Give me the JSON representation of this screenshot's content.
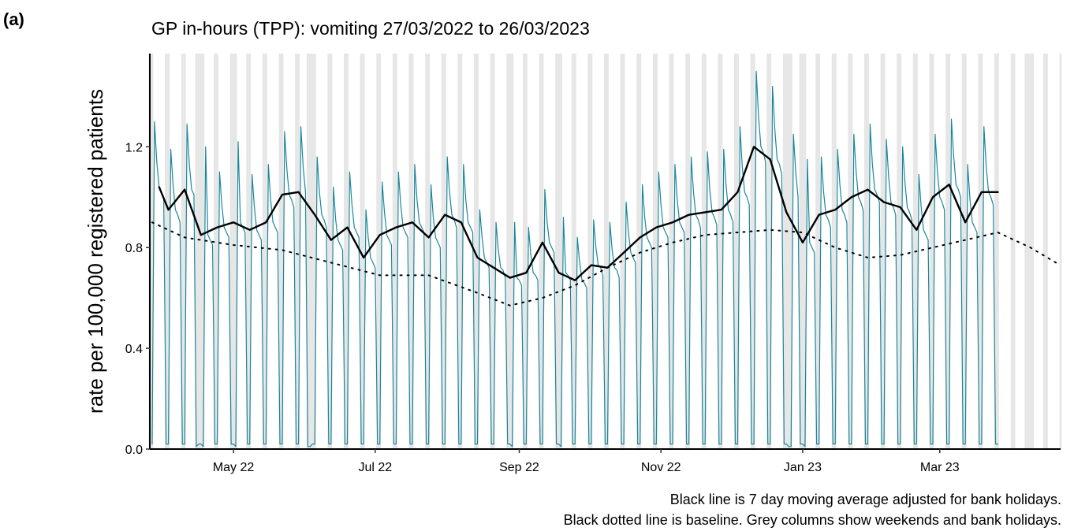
{
  "panel_label": "(a)",
  "chart_data": {
    "type": "line",
    "title": "GP in-hours (TPP): vomiting 27/03/2022 to 26/03/2023",
    "y_label": "rate per 100,000 registered patients",
    "notes": [
      "Black line is 7 day moving average adjusted for bank holidays.",
      "Black dotted line is baseline. Grey columns show weekends and bank holidays."
    ],
    "xlim": [
      "2022-03-26",
      "2023-04-22"
    ],
    "xticks": [
      {
        "value": "2022-05-01",
        "label": "May 22"
      },
      {
        "value": "2022-07-01",
        "label": "Jul 22"
      },
      {
        "value": "2022-09-01",
        "label": "Sep 22"
      },
      {
        "value": "2022-11-01",
        "label": "Nov 22"
      },
      {
        "value": "2023-01-01",
        "label": "Jan 23"
      },
      {
        "value": "2023-03-01",
        "label": "Mar 23"
      }
    ],
    "ylim": [
      0,
      1.57
    ],
    "yticks": [
      {
        "value": 0,
        "label": "0.0"
      },
      0.4,
      0.8,
      1.2
    ],
    "shade_color": "#e6e6e6",
    "bank_holidays": [
      "2022-04-15",
      "2022-04-18",
      "2022-05-02",
      "2022-06-02",
      "2022-06-03",
      "2022-08-29",
      "2022-09-19",
      "2022-12-26",
      "2022-12-27",
      "2023-01-02",
      "2023-04-07",
      "2023-04-10"
    ],
    "series": [
      {
        "role": "daily",
        "color": "#1b869b",
        "x": [
          "2022-03-27",
          "2022-03-28",
          "2022-03-29",
          "2022-03-30",
          "2022-03-31",
          "2022-04-01",
          "2022-04-02",
          "2022-04-03",
          "2022-04-04",
          "2022-04-05",
          "2022-04-06",
          "2022-04-07",
          "2022-04-08",
          "2022-04-09",
          "2022-04-10",
          "2022-04-11",
          "2022-04-12",
          "2022-04-13",
          "2022-04-14",
          "2022-04-15",
          "2022-04-16",
          "2022-04-17",
          "2022-04-18",
          "2022-04-19",
          "2022-04-20",
          "2022-04-21",
          "2022-04-22",
          "2022-04-23",
          "2022-04-24",
          "2022-04-25",
          "2022-04-26",
          "2022-04-27",
          "2022-04-28",
          "2022-04-29",
          "2022-04-30",
          "2022-05-01",
          "2022-05-02",
          "2022-05-03",
          "2022-05-04",
          "2022-05-05",
          "2022-05-06",
          "2022-05-07",
          "2022-05-08",
          "2022-05-09",
          "2022-05-10",
          "2022-05-11",
          "2022-05-12",
          "2022-05-13",
          "2022-05-14",
          "2022-05-15",
          "2022-05-16",
          "2022-05-17",
          "2022-05-18",
          "2022-05-19",
          "2022-05-20",
          "2022-05-21",
          "2022-05-22",
          "2022-05-23",
          "2022-05-24",
          "2022-05-25",
          "2022-05-26",
          "2022-05-27",
          "2022-05-28",
          "2022-05-29",
          "2022-05-30",
          "2022-05-31",
          "2022-06-01",
          "2022-06-02",
          "2022-06-03",
          "2022-06-04",
          "2022-06-05",
          "2022-06-06",
          "2022-06-07",
          "2022-06-08",
          "2022-06-09",
          "2022-06-10",
          "2022-06-11",
          "2022-06-12",
          "2022-06-13",
          "2022-06-14",
          "2022-06-15",
          "2022-06-16",
          "2022-06-17",
          "2022-06-18",
          "2022-06-19",
          "2022-06-20",
          "2022-06-21",
          "2022-06-22",
          "2022-06-23",
          "2022-06-24",
          "2022-06-25",
          "2022-06-26",
          "2022-06-27",
          "2022-06-28",
          "2022-06-29",
          "2022-06-30",
          "2022-07-01",
          "2022-07-02",
          "2022-07-03",
          "2022-07-04",
          "2022-07-05",
          "2022-07-06",
          "2022-07-07",
          "2022-07-08",
          "2022-07-09",
          "2022-07-10",
          "2022-07-11",
          "2022-07-12",
          "2022-07-13",
          "2022-07-14",
          "2022-07-15",
          "2022-07-16",
          "2022-07-17",
          "2022-07-18",
          "2022-07-19",
          "2022-07-20",
          "2022-07-21",
          "2022-07-22",
          "2022-07-23",
          "2022-07-24",
          "2022-07-25",
          "2022-07-26",
          "2022-07-27",
          "2022-07-28",
          "2022-07-29",
          "2022-07-30",
          "2022-07-31",
          "2022-08-01",
          "2022-08-02",
          "2022-08-03",
          "2022-08-04",
          "2022-08-05",
          "2022-08-06",
          "2022-08-07",
          "2022-08-08",
          "2022-08-09",
          "2022-08-10",
          "2022-08-11",
          "2022-08-12",
          "2022-08-13",
          "2022-08-14",
          "2022-08-15",
          "2022-08-16",
          "2022-08-17",
          "2022-08-18",
          "2022-08-19",
          "2022-08-20",
          "2022-08-21",
          "2022-08-22",
          "2022-08-23",
          "2022-08-24",
          "2022-08-25",
          "2022-08-26",
          "2022-08-27",
          "2022-08-28",
          "2022-08-29",
          "2022-08-30",
          "2022-08-31",
          "2022-09-01",
          "2022-09-02",
          "2022-09-03",
          "2022-09-04",
          "2022-09-05",
          "2022-09-06",
          "2022-09-07",
          "2022-09-08",
          "2022-09-09",
          "2022-09-10",
          "2022-09-11",
          "2022-09-12",
          "2022-09-13",
          "2022-09-14",
          "2022-09-15",
          "2022-09-16",
          "2022-09-17",
          "2022-09-18",
          "2022-09-19",
          "2022-09-20",
          "2022-09-21",
          "2022-09-22",
          "2022-09-23",
          "2022-09-24",
          "2022-09-25",
          "2022-09-26",
          "2022-09-27",
          "2022-09-28",
          "2022-09-29",
          "2022-09-30",
          "2022-10-01",
          "2022-10-02",
          "2022-10-03",
          "2022-10-04",
          "2022-10-05",
          "2022-10-06",
          "2022-10-07",
          "2022-10-08",
          "2022-10-09",
          "2022-10-10",
          "2022-10-11",
          "2022-10-12",
          "2022-10-13",
          "2022-10-14",
          "2022-10-15",
          "2022-10-16",
          "2022-10-17",
          "2022-10-18",
          "2022-10-19",
          "2022-10-20",
          "2022-10-21",
          "2022-10-22",
          "2022-10-23",
          "2022-10-24",
          "2022-10-25",
          "2022-10-26",
          "2022-10-27",
          "2022-10-28",
          "2022-10-29",
          "2022-10-30",
          "2022-10-31",
          "2022-11-01",
          "2022-11-02",
          "2022-11-03",
          "2022-11-04",
          "2022-11-05",
          "2022-11-06",
          "2022-11-07",
          "2022-11-08",
          "2022-11-09",
          "2022-11-10",
          "2022-11-11",
          "2022-11-12",
          "2022-11-13",
          "2022-11-14",
          "2022-11-15",
          "2022-11-16",
          "2022-11-17",
          "2022-11-18",
          "2022-11-19",
          "2022-11-20",
          "2022-11-21",
          "2022-11-22",
          "2022-11-23",
          "2022-11-24",
          "2022-11-25",
          "2022-11-26",
          "2022-11-27",
          "2022-11-28",
          "2022-11-29",
          "2022-11-30",
          "2022-12-01",
          "2022-12-02",
          "2022-12-03",
          "2022-12-04",
          "2022-12-05",
          "2022-12-06",
          "2022-12-07",
          "2022-12-08",
          "2022-12-09",
          "2022-12-10",
          "2022-12-11",
          "2022-12-12",
          "2022-12-13",
          "2022-12-14",
          "2022-12-15",
          "2022-12-16",
          "2022-12-17",
          "2022-12-18",
          "2022-12-19",
          "2022-12-20",
          "2022-12-21",
          "2022-12-22",
          "2022-12-23",
          "2022-12-24",
          "2022-12-25",
          "2022-12-26",
          "2022-12-27",
          "2022-12-28",
          "2022-12-29",
          "2022-12-30",
          "2022-12-31",
          "2023-01-01",
          "2023-01-02",
          "2023-01-03",
          "2023-01-04",
          "2023-01-05",
          "2023-01-06",
          "2023-01-07",
          "2023-01-08",
          "2023-01-09",
          "2023-01-10",
          "2023-01-11",
          "2023-01-12",
          "2023-01-13",
          "2023-01-14",
          "2023-01-15",
          "2023-01-16",
          "2023-01-17",
          "2023-01-18",
          "2023-01-19",
          "2023-01-20",
          "2023-01-21",
          "2023-01-22",
          "2023-01-23",
          "2023-01-24",
          "2023-01-25",
          "2023-01-26",
          "2023-01-27",
          "2023-01-28",
          "2023-01-29",
          "2023-01-30",
          "2023-01-31",
          "2023-02-01",
          "2023-02-02",
          "2023-02-03",
          "2023-02-04",
          "2023-02-05",
          "2023-02-06",
          "2023-02-07",
          "2023-02-08",
          "2023-02-09",
          "2023-02-10",
          "2023-02-11",
          "2023-02-12",
          "2023-02-13",
          "2023-02-14",
          "2023-02-15",
          "2023-02-16",
          "2023-02-17",
          "2023-02-18",
          "2023-02-19",
          "2023-02-20",
          "2023-02-21",
          "2023-02-22",
          "2023-02-23",
          "2023-02-24",
          "2023-02-25",
          "2023-02-26",
          "2023-02-27",
          "2023-02-28",
          "2023-03-01",
          "2023-03-02",
          "2023-03-03",
          "2023-03-04",
          "2023-03-05",
          "2023-03-06",
          "2023-03-07",
          "2023-03-08",
          "2023-03-09",
          "2023-03-10",
          "2023-03-11",
          "2023-03-12",
          "2023-03-13",
          "2023-03-14",
          "2023-03-15",
          "2023-03-16",
          "2023-03-17",
          "2023-03-18",
          "2023-03-19",
          "2023-03-20",
          "2023-03-21",
          "2023-03-22",
          "2023-03-23",
          "2023-03-24",
          "2023-03-25",
          "2023-03-26"
        ],
        "values": [
          0.02,
          1.3,
          1.14,
          1.04,
          1.02,
          0.99,
          0.02,
          0.02,
          1.19,
          1.05,
          0.95,
          0.93,
          0.9,
          0.02,
          0.02,
          1.29,
          1.13,
          1.03,
          1.01,
          0.01,
          0.02,
          0.02,
          0.01,
          1.2,
          0.85,
          0.83,
          0.81,
          0.02,
          0.02,
          1.1,
          0.97,
          0.88,
          0.86,
          0.84,
          0.02,
          0.02,
          0.01,
          1.22,
          0.9,
          0.88,
          0.86,
          0.02,
          0.02,
          1.09,
          0.96,
          0.87,
          0.85,
          0.83,
          0.02,
          0.02,
          1.13,
          0.99,
          0.9,
          0.88,
          0.86,
          0.02,
          0.02,
          1.26,
          1.11,
          1.01,
          0.99,
          0.96,
          0.02,
          0.02,
          1.28,
          1.12,
          1.02,
          0.01,
          0.01,
          0.02,
          0.02,
          1.16,
          1.02,
          0.93,
          0.91,
          0.88,
          0.02,
          0.02,
          1.04,
          0.91,
          0.83,
          0.81,
          0.79,
          0.02,
          0.02,
          1.1,
          0.97,
          0.88,
          0.86,
          0.84,
          0.02,
          0.02,
          0.95,
          0.84,
          0.76,
          0.74,
          0.72,
          0.02,
          0.02,
          1.06,
          0.94,
          0.85,
          0.83,
          0.81,
          0.02,
          0.02,
          1.1,
          0.97,
          0.88,
          0.86,
          0.84,
          0.02,
          0.02,
          1.13,
          0.99,
          0.9,
          0.88,
          0.86,
          0.02,
          0.02,
          1.05,
          0.92,
          0.84,
          0.82,
          0.8,
          0.02,
          0.02,
          1.16,
          1.02,
          0.93,
          0.91,
          0.88,
          0.02,
          0.02,
          1.13,
          0.99,
          0.9,
          0.88,
          0.86,
          0.02,
          0.02,
          0.95,
          0.84,
          0.76,
          0.74,
          0.72,
          0.02,
          0.02,
          0.9,
          0.79,
          0.72,
          0.71,
          0.68,
          0.02,
          0.02,
          0.01,
          0.9,
          0.68,
          0.67,
          0.65,
          0.02,
          0.02,
          0.88,
          0.77,
          0.7,
          0.69,
          0.67,
          0.02,
          0.02,
          1.03,
          0.9,
          0.82,
          0.8,
          0.78,
          0.02,
          0.02,
          0.01,
          0.92,
          0.7,
          0.69,
          0.67,
          0.02,
          0.02,
          0.84,
          0.74,
          0.67,
          0.66,
          0.64,
          0.02,
          0.02,
          0.91,
          0.8,
          0.73,
          0.72,
          0.69,
          0.02,
          0.02,
          0.9,
          0.79,
          0.72,
          0.71,
          0.68,
          0.02,
          0.02,
          0.98,
          0.86,
          0.78,
          0.76,
          0.74,
          0.02,
          0.02,
          1.05,
          0.92,
          0.84,
          0.82,
          0.8,
          0.02,
          0.02,
          1.1,
          0.97,
          0.88,
          0.86,
          0.84,
          0.02,
          0.02,
          1.13,
          0.99,
          0.9,
          0.88,
          0.86,
          0.02,
          0.02,
          1.16,
          1.02,
          0.93,
          0.91,
          0.88,
          0.02,
          0.02,
          1.18,
          1.03,
          0.94,
          0.92,
          0.89,
          0.02,
          0.02,
          1.19,
          1.05,
          0.95,
          0.93,
          0.9,
          0.02,
          0.02,
          1.28,
          1.12,
          1.02,
          1.0,
          0.97,
          0.02,
          0.02,
          1.5,
          1.32,
          1.2,
          1.18,
          1.14,
          0.02,
          0.02,
          1.44,
          1.27,
          1.15,
          1.13,
          1.09,
          0.02,
          0.02,
          0.01,
          0.01,
          1.25,
          1.1,
          1.0,
          0.02,
          0.02,
          0.01,
          1.15,
          0.82,
          0.8,
          0.78,
          0.02,
          0.02,
          1.16,
          1.02,
          0.93,
          0.91,
          0.88,
          0.02,
          0.02,
          1.19,
          1.05,
          0.95,
          0.93,
          0.9,
          0.02,
          0.02,
          1.25,
          1.1,
          1.0,
          0.98,
          0.95,
          0.02,
          0.02,
          1.29,
          1.13,
          1.03,
          1.01,
          0.98,
          0.02,
          0.02,
          1.23,
          1.08,
          0.98,
          0.96,
          0.93,
          0.02,
          0.02,
          1.2,
          1.06,
          0.96,
          0.94,
          0.91,
          0.02,
          0.02,
          1.09,
          0.96,
          0.87,
          0.85,
          0.83,
          0.02,
          0.02,
          1.25,
          1.1,
          1.0,
          0.98,
          0.95,
          0.02,
          0.02,
          1.31,
          1.16,
          1.05,
          1.03,
          1.0,
          0.02,
          0.02,
          1.13,
          0.99,
          0.9,
          0.88,
          0.86,
          0.02,
          0.02,
          1.28,
          1.12,
          1.02,
          1.0,
          0.97,
          0.02,
          0.02
        ]
      },
      {
        "role": "moving-average",
        "color": "#000000",
        "x": [
          "2022-03-30",
          "2022-04-03",
          "2022-04-10",
          "2022-04-17",
          "2022-04-24",
          "2022-05-01",
          "2022-05-08",
          "2022-05-15",
          "2022-05-22",
          "2022-05-29",
          "2022-06-05",
          "2022-06-12",
          "2022-06-19",
          "2022-06-26",
          "2022-07-03",
          "2022-07-10",
          "2022-07-17",
          "2022-07-24",
          "2022-07-31",
          "2022-08-07",
          "2022-08-14",
          "2022-08-21",
          "2022-08-28",
          "2022-09-04",
          "2022-09-11",
          "2022-09-18",
          "2022-09-25",
          "2022-10-02",
          "2022-10-09",
          "2022-10-16",
          "2022-10-23",
          "2022-10-30",
          "2022-11-06",
          "2022-11-13",
          "2022-11-20",
          "2022-11-27",
          "2022-12-04",
          "2022-12-11",
          "2022-12-18",
          "2022-12-25",
          "2023-01-01",
          "2023-01-08",
          "2023-01-15",
          "2023-01-22",
          "2023-01-29",
          "2023-02-05",
          "2023-02-12",
          "2023-02-19",
          "2023-02-26",
          "2023-03-05",
          "2023-03-12",
          "2023-03-19",
          "2023-03-26"
        ],
        "values": [
          1.04,
          0.95,
          1.03,
          0.85,
          0.88,
          0.9,
          0.87,
          0.9,
          1.01,
          1.02,
          0.93,
          0.83,
          0.88,
          0.76,
          0.85,
          0.88,
          0.9,
          0.84,
          0.93,
          0.9,
          0.76,
          0.72,
          0.68,
          0.7,
          0.82,
          0.7,
          0.67,
          0.73,
          0.72,
          0.78,
          0.84,
          0.88,
          0.9,
          0.93,
          0.94,
          0.95,
          1.02,
          1.2,
          1.15,
          0.94,
          0.82,
          0.93,
          0.95,
          1.0,
          1.03,
          0.98,
          0.96,
          0.87,
          1.0,
          1.05,
          0.9,
          1.02,
          1.02
        ]
      },
      {
        "role": "baseline",
        "color": "#000000",
        "dashed": true,
        "x": [
          "2022-03-27",
          "2022-04-10",
          "2022-05-01",
          "2022-05-22",
          "2022-06-12",
          "2022-07-03",
          "2022-07-24",
          "2022-08-14",
          "2022-08-28",
          "2022-09-11",
          "2022-09-25",
          "2022-10-09",
          "2022-10-23",
          "2022-11-06",
          "2022-11-20",
          "2022-12-04",
          "2022-12-18",
          "2023-01-01",
          "2023-01-15",
          "2023-01-29",
          "2023-02-12",
          "2023-02-26",
          "2023-03-12",
          "2023-03-26",
          "2023-04-09",
          "2023-04-20"
        ],
        "values": [
          0.9,
          0.84,
          0.81,
          0.79,
          0.74,
          0.69,
          0.69,
          0.62,
          0.57,
          0.6,
          0.65,
          0.72,
          0.78,
          0.82,
          0.85,
          0.86,
          0.87,
          0.86,
          0.8,
          0.76,
          0.77,
          0.8,
          0.83,
          0.86,
          0.8,
          0.74
        ]
      }
    ]
  }
}
